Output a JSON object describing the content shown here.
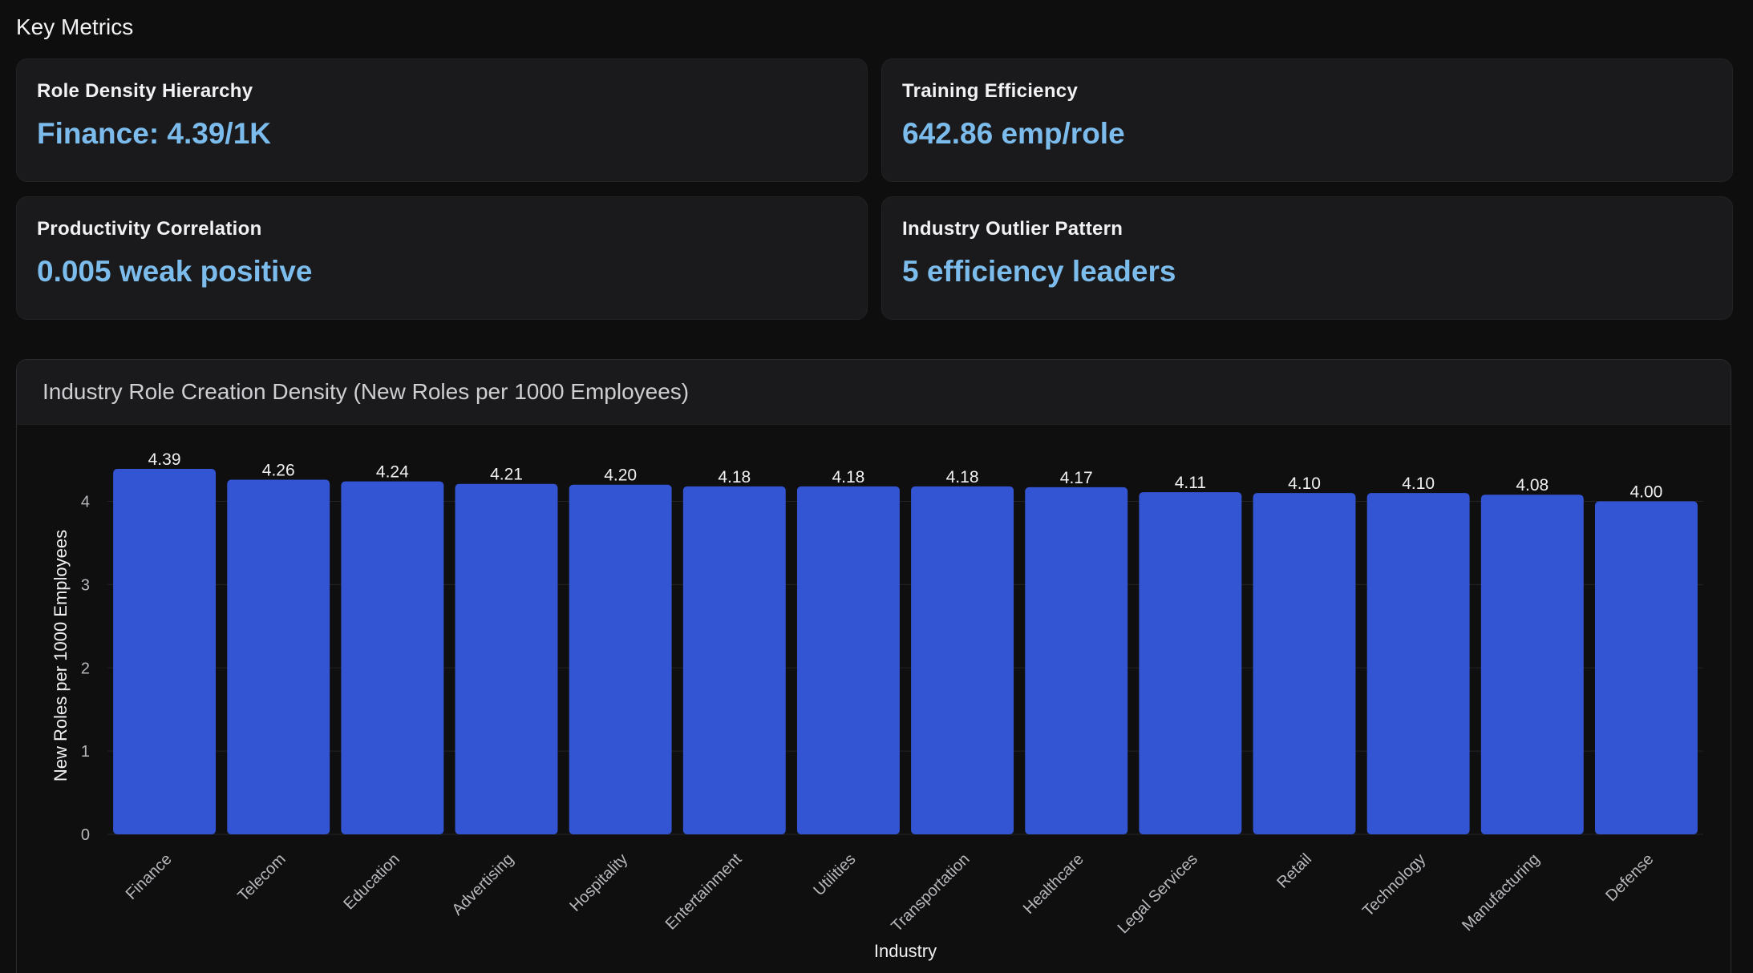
{
  "header": {
    "title": "Key Metrics"
  },
  "metrics": [
    {
      "label": "Role Density Hierarchy",
      "value": "Finance: 4.39/1K"
    },
    {
      "label": "Training Efficiency",
      "value": "642.86 emp/role"
    },
    {
      "label": "Productivity Correlation",
      "value": "0.005 weak positive"
    },
    {
      "label": "Industry Outlier Pattern",
      "value": "5 efficiency leaders"
    }
  ],
  "chart_panel": {
    "title": "Industry Role Creation Density (New Roles per 1000 Employees)"
  },
  "colors": {
    "bar": "#3355d4",
    "metric_value": "#7cbcec",
    "grid": "#242428",
    "axis_text": "#b8b8bc",
    "label_text": "#f0f0f2"
  },
  "chart_data": {
    "type": "bar",
    "title": "Industry Role Creation Density (New Roles per 1000 Employees)",
    "xlabel": "Industry",
    "ylabel": "New Roles per 1000 Employees",
    "categories": [
      "Finance",
      "Telecom",
      "Education",
      "Advertising",
      "Hospitality",
      "Entertainment",
      "Utilities",
      "Transportation",
      "Healthcare",
      "Legal Services",
      "Retail",
      "Technology",
      "Manufacturing",
      "Defense"
    ],
    "values": [
      4.39,
      4.26,
      4.24,
      4.21,
      4.2,
      4.18,
      4.18,
      4.18,
      4.17,
      4.11,
      4.1,
      4.1,
      4.08,
      4.0
    ],
    "data_labels": [
      "4.39",
      "4.26",
      "4.24",
      "4.21",
      "4.20",
      "4.18",
      "4.18",
      "4.18",
      "4.17",
      "4.11",
      "4.10",
      "4.10",
      "4.08",
      "4.00"
    ],
    "yticks": [
      0,
      1,
      2,
      3,
      4
    ],
    "ylim": [
      0,
      4.39
    ],
    "grid": true,
    "legend": "none"
  }
}
